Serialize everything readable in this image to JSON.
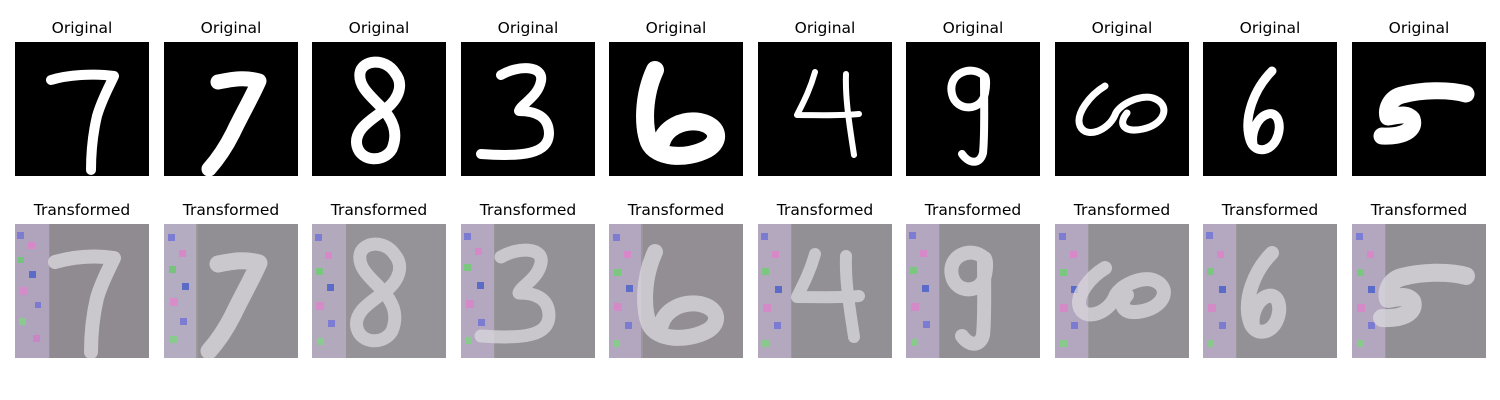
{
  "original_title": "Original",
  "transformed_title": "Transformed",
  "colors": {
    "digit_background": "#000000",
    "digit_stroke": "#ffffff",
    "transformed_background": "#9a979c",
    "transformed_stroke": "#d6d4d8",
    "transformed_shadow": "#5d5a62"
  },
  "digits": [
    "7",
    "7",
    "8",
    "3",
    "6",
    "4",
    "9",
    "6",
    "6",
    "5"
  ]
}
